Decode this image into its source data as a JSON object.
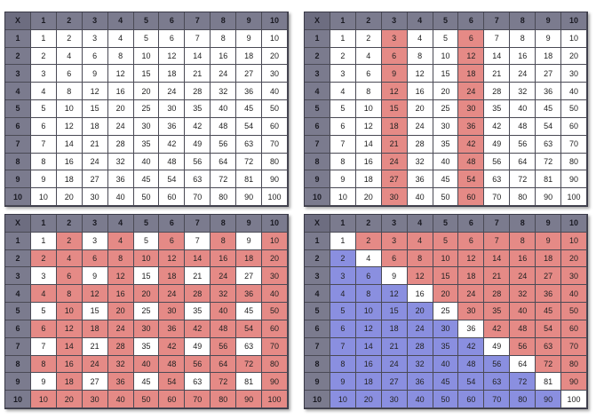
{
  "corner_label": "X",
  "header": [
    "1",
    "2",
    "3",
    "4",
    "5",
    "6",
    "7",
    "8",
    "9",
    "10"
  ],
  "colors": {
    "header": "#7b7b8e",
    "red": "#e58a86",
    "blue": "#8a8fe0",
    "white": "#ffffff"
  },
  "panels": [
    {
      "id": "panel-plain",
      "highlight": "none"
    },
    {
      "id": "panel-columns-3-6",
      "highlight": "columns 3 and 6 red"
    },
    {
      "id": "panel-odd-odd-white",
      "highlight": "odd x odd white, others red"
    },
    {
      "id": "panel-diagonal",
      "highlight": "diagonal white, below blue, above red"
    }
  ]
}
